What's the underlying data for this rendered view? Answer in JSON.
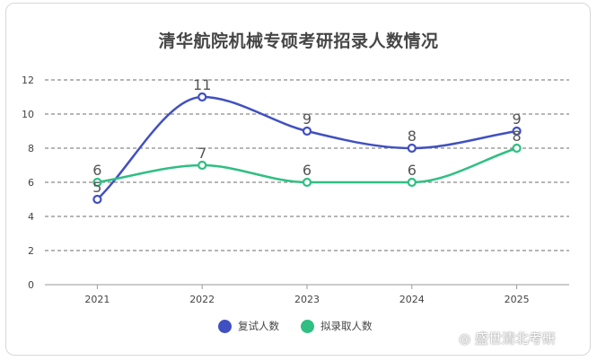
{
  "chart_data": {
    "type": "line",
    "title": "清华航院机械专硕考研招录人数情况",
    "categories": [
      "2021",
      "2022",
      "2023",
      "2024",
      "2025"
    ],
    "ylim": [
      0,
      12
    ],
    "yticks": [
      0,
      2,
      4,
      6,
      8,
      10,
      12
    ],
    "grid": true,
    "legend_position": "bottom",
    "series": [
      {
        "name": "复试人数",
        "values": [
          5,
          11,
          9,
          8,
          9
        ],
        "color": "#4150c0"
      },
      {
        "name": "拟录取人数",
        "values": [
          6,
          7,
          6,
          6,
          8
        ],
        "color": "#2fbf82"
      }
    ]
  },
  "watermark": "盛世清北考研",
  "watermark_icon": "weibo-like-logo-icon"
}
